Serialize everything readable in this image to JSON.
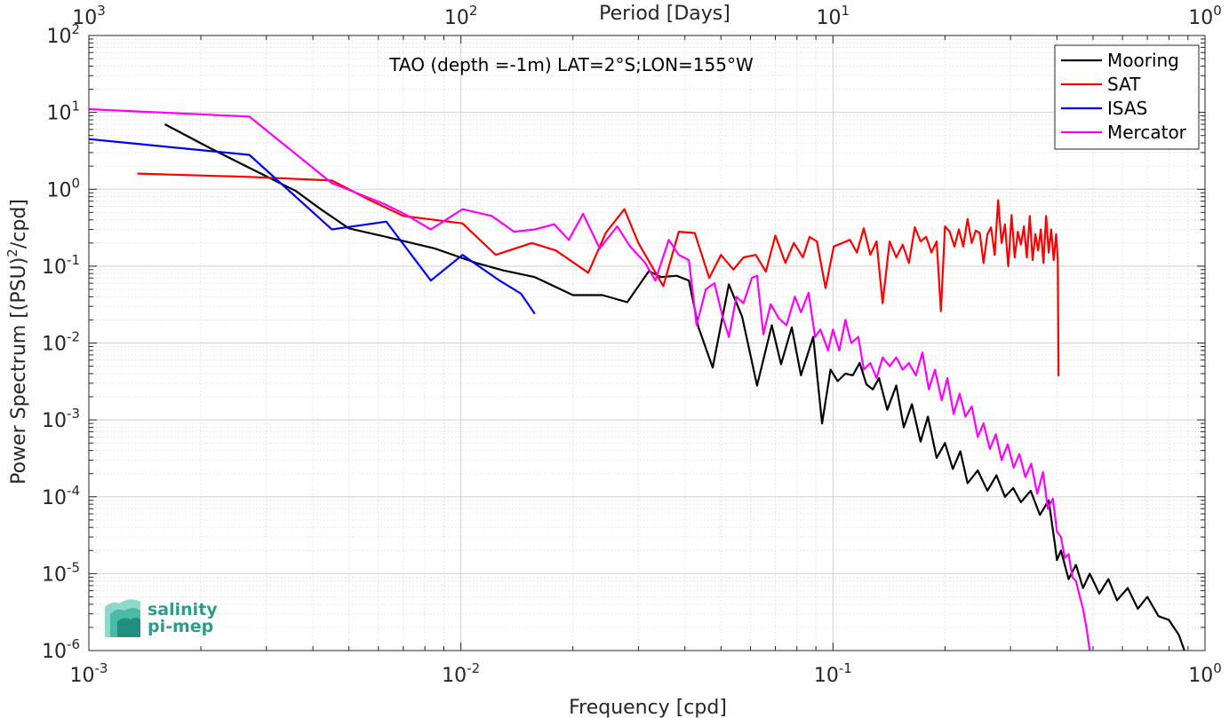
{
  "chart_data": {
    "type": "line",
    "annotation": "TAO (depth =-1m) LAT=2°S;LON=155°W",
    "xlabel": "Frequency [cpd]",
    "ylabel_parts": [
      "Power Spectrum [(PSU)",
      "2",
      "/cpd]"
    ],
    "top_axis_label": "Period [Days]",
    "xscale": "log",
    "yscale": "log",
    "xlim": [
      0.001,
      1
    ],
    "ylim": [
      1e-06,
      100
    ],
    "grid": true,
    "legend_position": "top-right",
    "x_ticks": [
      {
        "value": 0.001,
        "base": "10",
        "exp": "-3"
      },
      {
        "value": 0.01,
        "base": "10",
        "exp": "-2"
      },
      {
        "value": 0.1,
        "base": "10",
        "exp": "-1"
      },
      {
        "value": 1,
        "base": "10",
        "exp": "0"
      }
    ],
    "y_ticks": [
      {
        "value": 100,
        "base": "10",
        "exp": "2"
      },
      {
        "value": 10,
        "base": "10",
        "exp": "1"
      },
      {
        "value": 1,
        "base": "10",
        "exp": "0"
      },
      {
        "value": 0.1,
        "base": "10",
        "exp": "-1"
      },
      {
        "value": 0.01,
        "base": "10",
        "exp": "-2"
      },
      {
        "value": 0.001,
        "base": "10",
        "exp": "-3"
      },
      {
        "value": 0.0001,
        "base": "10",
        "exp": "-4"
      },
      {
        "value": 1e-05,
        "base": "10",
        "exp": "-5"
      },
      {
        "value": 1e-06,
        "base": "10",
        "exp": "-6"
      }
    ],
    "top_ticks": [
      {
        "value": 0.001,
        "base": "10",
        "exp": "3"
      },
      {
        "value": 0.01,
        "base": "10",
        "exp": "2"
      },
      {
        "value": 0.1,
        "base": "10",
        "exp": "1"
      },
      {
        "value": 1,
        "base": "10",
        "exp": "0"
      }
    ],
    "series": [
      {
        "name": "Mooring",
        "color": "#000000",
        "points": [
          [
            0.0016,
            7.0
          ],
          [
            0.0021,
            3.5
          ],
          [
            0.0027,
            1.9
          ],
          [
            0.0036,
            0.95
          ],
          [
            0.0042,
            0.55
          ],
          [
            0.005,
            0.31
          ],
          [
            0.0063,
            0.24
          ],
          [
            0.0085,
            0.17
          ],
          [
            0.011,
            0.11
          ],
          [
            0.013,
            0.088
          ],
          [
            0.0158,
            0.072
          ],
          [
            0.02,
            0.042
          ],
          [
            0.024,
            0.042
          ],
          [
            0.028,
            0.034
          ],
          [
            0.032,
            0.086
          ],
          [
            0.0345,
            0.072
          ],
          [
            0.038,
            0.075
          ],
          [
            0.041,
            0.065
          ],
          [
            0.0435,
            0.016
          ],
          [
            0.0475,
            0.0048
          ],
          [
            0.0525,
            0.058
          ],
          [
            0.057,
            0.022
          ],
          [
            0.0625,
            0.0028
          ],
          [
            0.0685,
            0.017
          ],
          [
            0.0725,
            0.0053
          ],
          [
            0.0775,
            0.016
          ],
          [
            0.082,
            0.0038
          ],
          [
            0.0885,
            0.012
          ],
          [
            0.0935,
            0.0009
          ],
          [
            0.0985,
            0.0045
          ],
          [
            0.103,
            0.0032
          ],
          [
            0.108,
            0.004
          ],
          [
            0.113,
            0.0038
          ],
          [
            0.118,
            0.0055
          ],
          [
            0.123,
            0.0029
          ],
          [
            0.128,
            0.0025
          ],
          [
            0.133,
            0.0035
          ],
          [
            0.14,
            0.00135
          ],
          [
            0.148,
            0.0028
          ],
          [
            0.155,
            0.0008
          ],
          [
            0.163,
            0.0016
          ],
          [
            0.172,
            0.00052
          ],
          [
            0.18,
            0.0011
          ],
          [
            0.19,
            0.00032
          ],
          [
            0.2,
            0.0005
          ],
          [
            0.21,
            0.00023
          ],
          [
            0.22,
            0.00039
          ],
          [
            0.23,
            0.00015
          ],
          [
            0.245,
            0.00022
          ],
          [
            0.26,
            0.00012
          ],
          [
            0.275,
            0.00019
          ],
          [
            0.29,
            0.0001
          ],
          [
            0.305,
            0.00013
          ],
          [
            0.32,
            8.5e-05
          ],
          [
            0.34,
            0.00012
          ],
          [
            0.36,
            5.8e-05
          ],
          [
            0.38,
            9e-05
          ],
          [
            0.395,
            2.4e-05
          ],
          [
            0.4,
            1.5e-05
          ],
          [
            0.41,
            2e-05
          ],
          [
            0.43,
            8.5e-06
          ],
          [
            0.45,
            1.3e-05
          ],
          [
            0.47,
            6.5e-06
          ],
          [
            0.49,
            1e-05
          ],
          [
            0.52,
            5.5e-06
          ],
          [
            0.55,
            8.5e-06
          ],
          [
            0.58,
            4.5e-06
          ],
          [
            0.62,
            6.5e-06
          ],
          [
            0.66,
            3.5e-06
          ],
          [
            0.7,
            5e-06
          ],
          [
            0.75,
            2.8e-06
          ],
          [
            0.8,
            2.5e-06
          ],
          [
            0.85,
            1.6e-06
          ],
          [
            0.88,
            1e-06
          ]
        ]
      },
      {
        "name": "SAT",
        "color": "#ff0000",
        "points": [
          [
            0.00135,
            1.6
          ],
          [
            0.0027,
            1.45
          ],
          [
            0.0045,
            1.3
          ],
          [
            0.0057,
            0.72
          ],
          [
            0.007,
            0.45
          ],
          [
            0.0101,
            0.36
          ],
          [
            0.0124,
            0.14
          ],
          [
            0.0155,
            0.2
          ],
          [
            0.018,
            0.16
          ],
          [
            0.022,
            0.082
          ],
          [
            0.0245,
            0.27
          ],
          [
            0.0275,
            0.55
          ],
          [
            0.03,
            0.2
          ],
          [
            0.035,
            0.055
          ],
          [
            0.0385,
            0.28
          ],
          [
            0.0425,
            0.27
          ],
          [
            0.0465,
            0.07
          ],
          [
            0.05,
            0.14
          ],
          [
            0.054,
            0.09
          ],
          [
            0.0575,
            0.13
          ],
          [
            0.062,
            0.14
          ],
          [
            0.066,
            0.085
          ],
          [
            0.07,
            0.25
          ],
          [
            0.0745,
            0.11
          ],
          [
            0.0785,
            0.2
          ],
          [
            0.083,
            0.13
          ],
          [
            0.0865,
            0.24
          ],
          [
            0.0905,
            0.21
          ],
          [
            0.0955,
            0.052
          ],
          [
            0.1005,
            0.18
          ],
          [
            0.106,
            0.2
          ],
          [
            0.111,
            0.22
          ],
          [
            0.116,
            0.15
          ],
          [
            0.121,
            0.31
          ],
          [
            0.126,
            0.14
          ],
          [
            0.131,
            0.21
          ],
          [
            0.136,
            0.033
          ],
          [
            0.142,
            0.21
          ],
          [
            0.148,
            0.13
          ],
          [
            0.154,
            0.19
          ],
          [
            0.16,
            0.11
          ],
          [
            0.166,
            0.32
          ],
          [
            0.172,
            0.21
          ],
          [
            0.178,
            0.24
          ],
          [
            0.184,
            0.15
          ],
          [
            0.19,
            0.21
          ],
          [
            0.195,
            0.026
          ],
          [
            0.2,
            0.33
          ],
          [
            0.206,
            0.28
          ],
          [
            0.212,
            0.18
          ],
          [
            0.218,
            0.3
          ],
          [
            0.224,
            0.18
          ],
          [
            0.23,
            0.41
          ],
          [
            0.236,
            0.2
          ],
          [
            0.242,
            0.29
          ],
          [
            0.248,
            0.27
          ],
          [
            0.254,
            0.11
          ],
          [
            0.26,
            0.26
          ],
          [
            0.266,
            0.32
          ],
          [
            0.272,
            0.14
          ],
          [
            0.278,
            0.72
          ],
          [
            0.284,
            0.2
          ],
          [
            0.29,
            0.35
          ],
          [
            0.296,
            0.1
          ],
          [
            0.302,
            0.46
          ],
          [
            0.308,
            0.13
          ],
          [
            0.314,
            0.28
          ],
          [
            0.32,
            0.19
          ],
          [
            0.326,
            0.33
          ],
          [
            0.332,
            0.13
          ],
          [
            0.338,
            0.45
          ],
          [
            0.344,
            0.12
          ],
          [
            0.35,
            0.26
          ],
          [
            0.356,
            0.16
          ],
          [
            0.362,
            0.3
          ],
          [
            0.368,
            0.11
          ],
          [
            0.374,
            0.45
          ],
          [
            0.38,
            0.15
          ],
          [
            0.386,
            0.3
          ],
          [
            0.392,
            0.12
          ],
          [
            0.398,
            0.26
          ],
          [
            0.402,
            0.12
          ],
          [
            0.404,
            0.0037
          ]
        ]
      },
      {
        "name": "ISAS",
        "color": "#0000ff",
        "points": [
          [
            0.001,
            4.5
          ],
          [
            0.0027,
            2.8
          ],
          [
            0.0045,
            0.3
          ],
          [
            0.0063,
            0.38
          ],
          [
            0.0083,
            0.065
          ],
          [
            0.0101,
            0.14
          ],
          [
            0.0127,
            0.065
          ],
          [
            0.0145,
            0.044
          ],
          [
            0.0158,
            0.024
          ]
        ]
      },
      {
        "name": "Mercator",
        "color": "#ff00ff",
        "points": [
          [
            0.001,
            11.0
          ],
          [
            0.0027,
            8.8
          ],
          [
            0.0045,
            1.2
          ],
          [
            0.0062,
            0.65
          ],
          [
            0.0071,
            0.47
          ],
          [
            0.0083,
            0.3
          ],
          [
            0.0101,
            0.55
          ],
          [
            0.0121,
            0.45
          ],
          [
            0.0139,
            0.28
          ],
          [
            0.0158,
            0.3
          ],
          [
            0.0178,
            0.35
          ],
          [
            0.0195,
            0.22
          ],
          [
            0.0213,
            0.48
          ],
          [
            0.0236,
            0.17
          ],
          [
            0.0263,
            0.33
          ],
          [
            0.0285,
            0.18
          ],
          [
            0.0313,
            0.11
          ],
          [
            0.0333,
            0.065
          ],
          [
            0.0362,
            0.22
          ],
          [
            0.0385,
            0.14
          ],
          [
            0.041,
            0.12
          ],
          [
            0.043,
            0.017
          ],
          [
            0.0455,
            0.05
          ],
          [
            0.048,
            0.06
          ],
          [
            0.0505,
            0.022
          ],
          [
            0.0525,
            0.012
          ],
          [
            0.055,
            0.04
          ],
          [
            0.0575,
            0.033
          ],
          [
            0.0605,
            0.07
          ],
          [
            0.0625,
            0.075
          ],
          [
            0.065,
            0.013
          ],
          [
            0.068,
            0.032
          ],
          [
            0.0715,
            0.021
          ],
          [
            0.075,
            0.017
          ],
          [
            0.079,
            0.04
          ],
          [
            0.082,
            0.025
          ],
          [
            0.086,
            0.045
          ],
          [
            0.0895,
            0.012
          ],
          [
            0.0925,
            0.015
          ],
          [
            0.097,
            0.008
          ],
          [
            0.1,
            0.015
          ],
          [
            0.104,
            0.008
          ],
          [
            0.108,
            0.02
          ],
          [
            0.112,
            0.01
          ],
          [
            0.117,
            0.012
          ],
          [
            0.121,
            0.0045
          ],
          [
            0.126,
            0.0055
          ],
          [
            0.131,
            0.0035
          ],
          [
            0.136,
            0.0065
          ],
          [
            0.142,
            0.005
          ],
          [
            0.148,
            0.0065
          ],
          [
            0.154,
            0.0045
          ],
          [
            0.16,
            0.0055
          ],
          [
            0.167,
            0.0038
          ],
          [
            0.174,
            0.0075
          ],
          [
            0.181,
            0.0025
          ],
          [
            0.188,
            0.0045
          ],
          [
            0.196,
            0.0018
          ],
          [
            0.203,
            0.0035
          ],
          [
            0.211,
            0.0012
          ],
          [
            0.219,
            0.0022
          ],
          [
            0.227,
            0.0011
          ],
          [
            0.236,
            0.0015
          ],
          [
            0.245,
            0.0006
          ],
          [
            0.254,
            0.0009
          ],
          [
            0.264,
            0.00042
          ],
          [
            0.274,
            0.00065
          ],
          [
            0.284,
            0.0003
          ],
          [
            0.295,
            0.00048
          ],
          [
            0.306,
            0.00024
          ],
          [
            0.317,
            0.00036
          ],
          [
            0.329,
            0.00018
          ],
          [
            0.341,
            0.00027
          ],
          [
            0.354,
            0.00011
          ],
          [
            0.367,
            0.00021
          ],
          [
            0.378,
            7e-05
          ],
          [
            0.39,
            9.5e-05
          ],
          [
            0.4,
            3.5e-05
          ],
          [
            0.41,
            3e-05
          ],
          [
            0.42,
            1.6e-05
          ],
          [
            0.43,
            1.8e-05
          ],
          [
            0.44,
            9e-06
          ],
          [
            0.45,
            8e-06
          ],
          [
            0.46,
            5.2e-06
          ],
          [
            0.47,
            3.5e-06
          ],
          [
            0.48,
            2e-06
          ],
          [
            0.49,
            1e-06
          ]
        ]
      }
    ],
    "logo": {
      "line1": "salinity",
      "line2": "pi-mep"
    }
  }
}
